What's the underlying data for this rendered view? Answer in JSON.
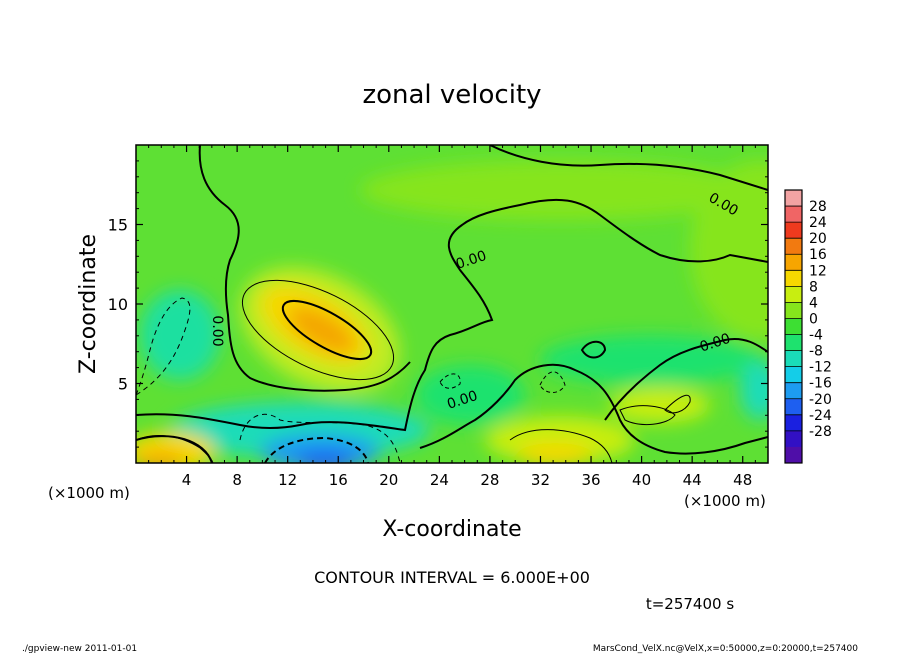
{
  "chart_data": {
    "type": "heatmap",
    "title": "zonal velocity",
    "xlabel": "X-coordinate",
    "ylabel": "Z-coordinate",
    "x_unit": "(×1000 m)",
    "y_unit": "(×1000 m)",
    "xlim": [
      0,
      50
    ],
    "ylim": [
      0,
      20
    ],
    "x_ticks": [
      4,
      8,
      12,
      16,
      20,
      24,
      28,
      32,
      36,
      40,
      44,
      48
    ],
    "y_ticks": [
      5,
      10,
      15
    ],
    "colorbar": {
      "labels": [
        28,
        24,
        20,
        16,
        12,
        8,
        4,
        0,
        -4,
        -8,
        -12,
        -16,
        -20,
        -24,
        -28
      ],
      "colors": [
        "#f2a3a3",
        "#f06565",
        "#ee3a1e",
        "#f27a10",
        "#f7a500",
        "#f6d800",
        "#c8ee10",
        "#86e51c",
        "#3ddf33",
        "#1ee26e",
        "#1adcb8",
        "#14cde8",
        "#1d9cf0",
        "#1e5ff0",
        "#1a20e0",
        "#3210c4",
        "#4f0ea8"
      ]
    },
    "features": [
      {
        "kind": "max",
        "x": 14.5,
        "z": 8.6,
        "value": 16
      },
      {
        "kind": "min",
        "x": 15.5,
        "z": 0.6,
        "value": -16
      },
      {
        "kind": "max",
        "x": 2.5,
        "z": 0.6,
        "value": 14
      },
      {
        "kind": "max",
        "x": 33.5,
        "z": 0.8,
        "value": 10
      },
      {
        "kind": "min",
        "x": 3.0,
        "z": 7.5,
        "value": -7
      },
      {
        "kind": "max",
        "x": 41.5,
        "z": 3.2,
        "value": 6
      }
    ],
    "contour_labels": [
      {
        "text": "0.00",
        "x": 6.5,
        "z": 8.3
      },
      {
        "text": "0.00",
        "x": 26.5,
        "z": 12.8
      },
      {
        "text": "0.00",
        "x": 25.8,
        "z": 4.0
      },
      {
        "text": "0.00",
        "x": 46.5,
        "z": 16.3
      },
      {
        "text": "0.00",
        "x": 45.8,
        "z": 7.6
      }
    ],
    "contour_interval_text": "CONTOUR INTERVAL = 6.000E+00",
    "time_text": "t=257400  s"
  },
  "footer": {
    "left": "./gpview-new  2011-01-01",
    "right": "MarsCond_VelX.nc@VelX,x=0:50000,z=0:20000,t=257400"
  }
}
